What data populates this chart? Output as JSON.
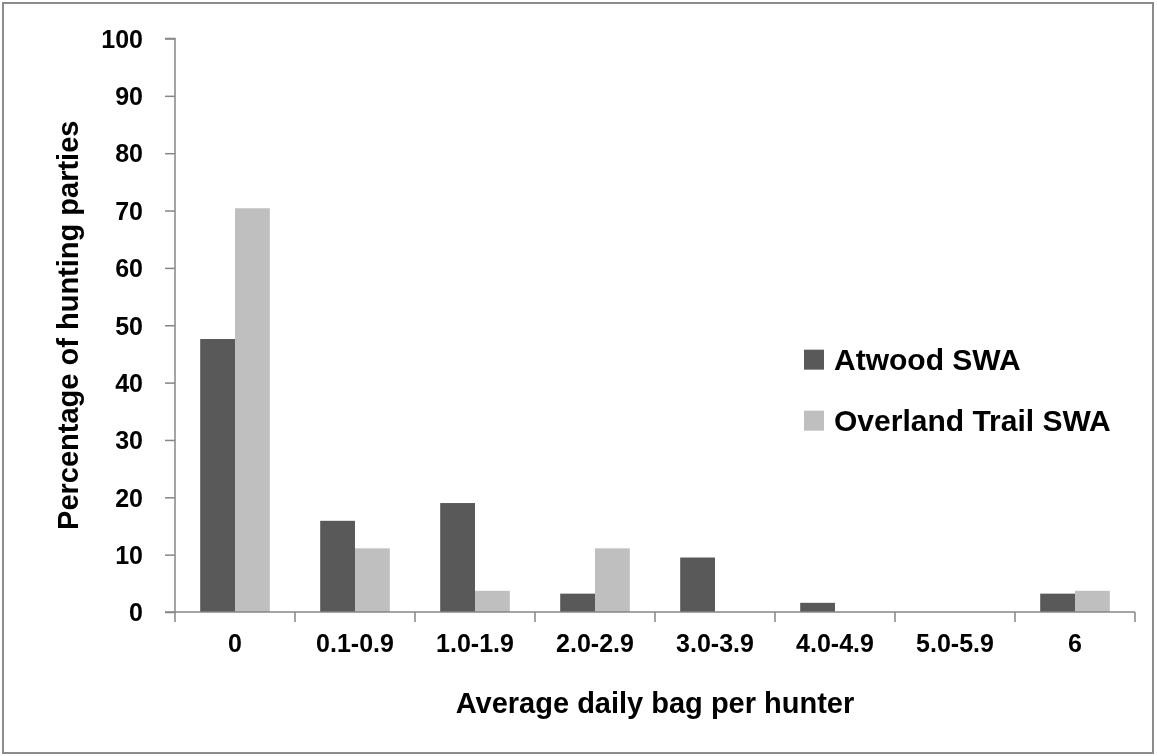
{
  "chart_data": {
    "type": "bar",
    "xlabel": "Average daily bag per hunter",
    "ylabel": "Percentage of hunting parties",
    "categories": [
      "0",
      "0.1-0.9",
      "1.0-1.9",
      "2.0-2.9",
      "3.0-3.9",
      "4.0-4.9",
      "5.0-5.9",
      "6"
    ],
    "series": [
      {
        "name": "Atwood SWA",
        "color": "#595959",
        "values": [
          47.6,
          15.9,
          19.0,
          3.2,
          9.5,
          1.6,
          0,
          3.2
        ]
      },
      {
        "name": "Overland Trail SWA",
        "color": "#bfbfbf",
        "values": [
          70.4,
          11.1,
          3.7,
          11.1,
          0,
          0,
          0,
          3.7
        ]
      }
    ],
    "ylim": [
      0,
      100
    ],
    "yticks": [
      0,
      10,
      20,
      30,
      40,
      50,
      60,
      70,
      80,
      90,
      100
    ],
    "legend": "right"
  }
}
